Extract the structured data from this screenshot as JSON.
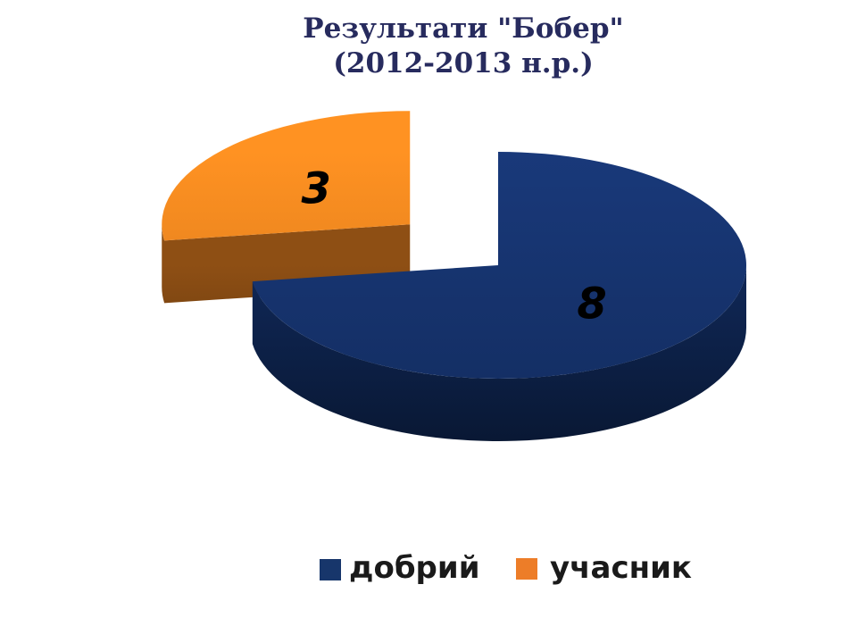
{
  "title": {
    "line1": "Результати \"Бобер\"",
    "line2": "(2012-2013 н.р.)"
  },
  "chart_data": {
    "type": "pie",
    "effect": "3d-exploded-pie",
    "title": "Результати \"Бобер\" (2012-2013 н.р.)",
    "categories": [
      "добрий",
      "учасник"
    ],
    "values": [
      8,
      3
    ],
    "start_angle_deg": 0,
    "direction": "clockwise",
    "legend_position": "bottom",
    "data_labels_visible": true,
    "slices": [
      {
        "label": "добрий",
        "value": 8,
        "exploded": false,
        "top_color": "#16336D",
        "side_color": "#0D2148"
      },
      {
        "label": "учасник",
        "value": 3,
        "exploded": true,
        "top_color": "#E8821E",
        "side_color": "#744110"
      }
    ]
  },
  "legend": {
    "items": [
      {
        "label": "добрий",
        "color": "#17366B"
      },
      {
        "label": "учасник",
        "color": "#ED7D28"
      }
    ]
  },
  "colors": {
    "background": "#FFFFFF",
    "title_text": "#272B5E",
    "data_label_text": "#000000",
    "legend_text": "#1A1A1A"
  }
}
